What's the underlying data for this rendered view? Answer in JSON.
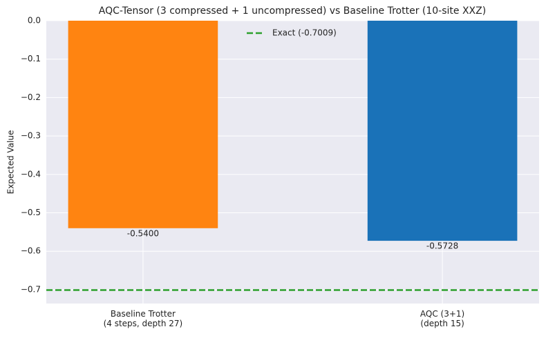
{
  "chart_data": {
    "type": "bar",
    "title": "AQC-Tensor (3 compressed + 1 uncompressed) vs Baseline Trotter (10-site XXZ)",
    "y_label": "Expected Value",
    "categories": [
      "Baseline Trotter\n(4 steps, depth 27)",
      "AQC (3+1)\n(depth 15)"
    ],
    "values": [
      -0.54,
      -0.5728
    ],
    "value_labels": [
      "-0.5400",
      "-0.5728"
    ],
    "colors": [
      "#ff8411",
      "#1a72b8"
    ],
    "reference_line": {
      "value": -0.7009,
      "label": "Exact (-0.7009)",
      "color": "#2ca02c"
    },
    "ylim": [
      -0.736,
      0
    ],
    "yticks": [
      {
        "value": 0,
        "label": "0.0"
      },
      {
        "value": -0.1,
        "label": "−0.1"
      },
      {
        "value": -0.2,
        "label": "−0.2"
      },
      {
        "value": -0.3,
        "label": "−0.3"
      },
      {
        "value": -0.4,
        "label": "−0.4"
      },
      {
        "value": -0.5,
        "label": "−0.5"
      },
      {
        "value": -0.6,
        "label": "−0.6"
      },
      {
        "value": -0.7,
        "label": "−0.7"
      }
    ],
    "grid": true
  }
}
